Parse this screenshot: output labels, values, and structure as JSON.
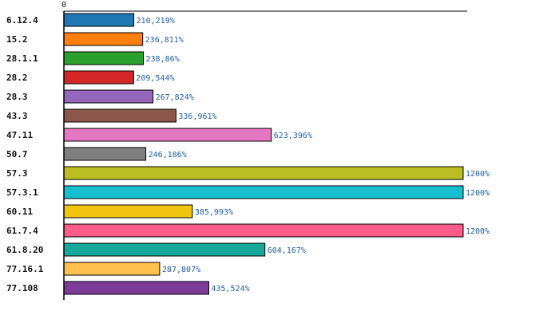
{
  "chart_data": {
    "type": "bar",
    "orientation": "horizontal",
    "categories": [
      "6.12.4",
      "15.2",
      "28.1.1",
      "28.2",
      "28.3",
      "43.3",
      "47.11",
      "50.7",
      "57.3",
      "57.3.1",
      "60.11",
      "61.7.4",
      "61.8.20",
      "77.16.1",
      "77.108"
    ],
    "values": [
      210.219,
      236.811,
      238.86,
      209.544,
      267.824,
      336.961,
      623.396,
      246.186,
      1200,
      1200,
      385.993,
      1200,
      604.167,
      287.807,
      435.524
    ],
    "data_labels": [
      "210,219%",
      "236,811%",
      "238,86%",
      "209,544%",
      "267,824%",
      "336,961%",
      "623,396%",
      "246,186%",
      "1200%",
      "1200%",
      "385,993%",
      "1200%",
      "604,167%",
      "287,807%",
      "435,524%"
    ],
    "colors": [
      "#1f77b4",
      "#ff7f0e",
      "#2ca02c",
      "#d62728",
      "#9467bd",
      "#8c564b",
      "#e377c2",
      "#7f7f7f",
      "#bcbd22",
      "#17becf",
      "#f1c40f",
      "#ff5c8a",
      "#16a89a",
      "#ffc04d",
      "#7d3c98"
    ],
    "xlim": [
      0,
      1200
    ],
    "x_tick_label": "0",
    "title": "",
    "xlabel": "",
    "ylabel": "",
    "grid": false,
    "legend": "none"
  }
}
